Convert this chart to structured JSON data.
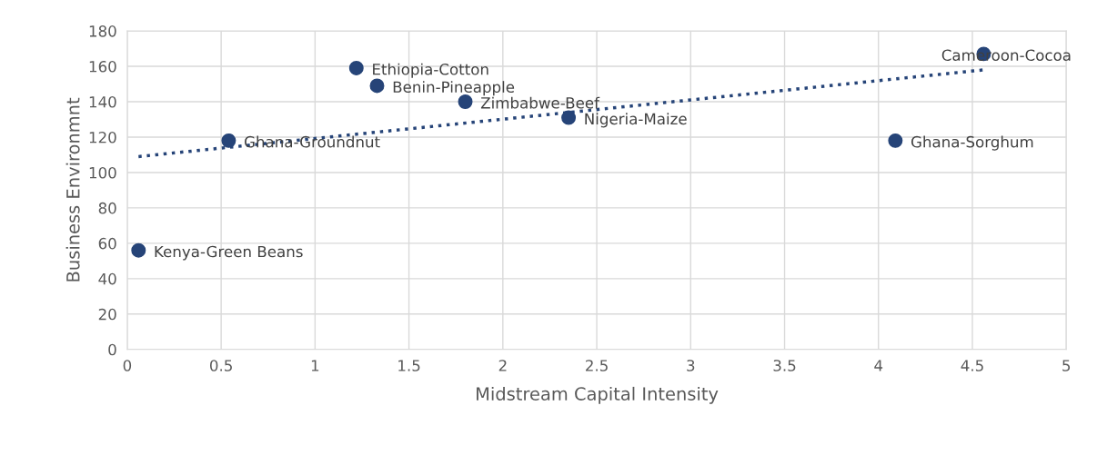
{
  "chart_data": {
    "type": "scatter",
    "xlabel": "Midstream Capital Intensity",
    "ylabel": "Business Environmnt",
    "xlim": [
      0,
      5
    ],
    "xticks": [
      0,
      0.5,
      1,
      1.5,
      2,
      2.5,
      3,
      3.5,
      4,
      4.5,
      5
    ],
    "ylim": [
      0,
      180
    ],
    "yticks": [
      0,
      20,
      40,
      60,
      80,
      100,
      120,
      140,
      160,
      180
    ],
    "grid": true,
    "marker": "circle",
    "series": [
      {
        "color": "#264478",
        "x": [
          0.06,
          0.54,
          1.22,
          1.33,
          1.8,
          2.35,
          4.09,
          4.56
        ],
        "values": [
          56,
          118,
          159,
          149,
          140,
          131,
          118,
          167
        ]
      },
      {
        "type": "line",
        "color": "#264478",
        "line_style": "dotted",
        "marker": "none",
        "x": [
          0.06,
          4.56
        ],
        "values": [
          109,
          158
        ]
      }
    ],
    "annotations": [
      {
        "text": "Kenya-Green Beans",
        "x": 0.06,
        "y": 56
      },
      {
        "text": "Ghana-Groundnut",
        "x": 0.54,
        "y": 118
      },
      {
        "text": "Ethiopia-Cotton",
        "x": 1.22,
        "y": 159
      },
      {
        "text": "Benin-Pineapple",
        "x": 1.33,
        "y": 149
      },
      {
        "text": "Zimbabwe-Beef",
        "x": 1.8,
        "y": 140
      },
      {
        "text": "Nigeria-Maize",
        "x": 2.35,
        "y": 131
      },
      {
        "text": "Ghana-Sorghum",
        "x": 4.09,
        "y": 118
      },
      {
        "text": "Cameroon-Cocoa",
        "x": 4.56,
        "y": 167
      }
    ]
  }
}
